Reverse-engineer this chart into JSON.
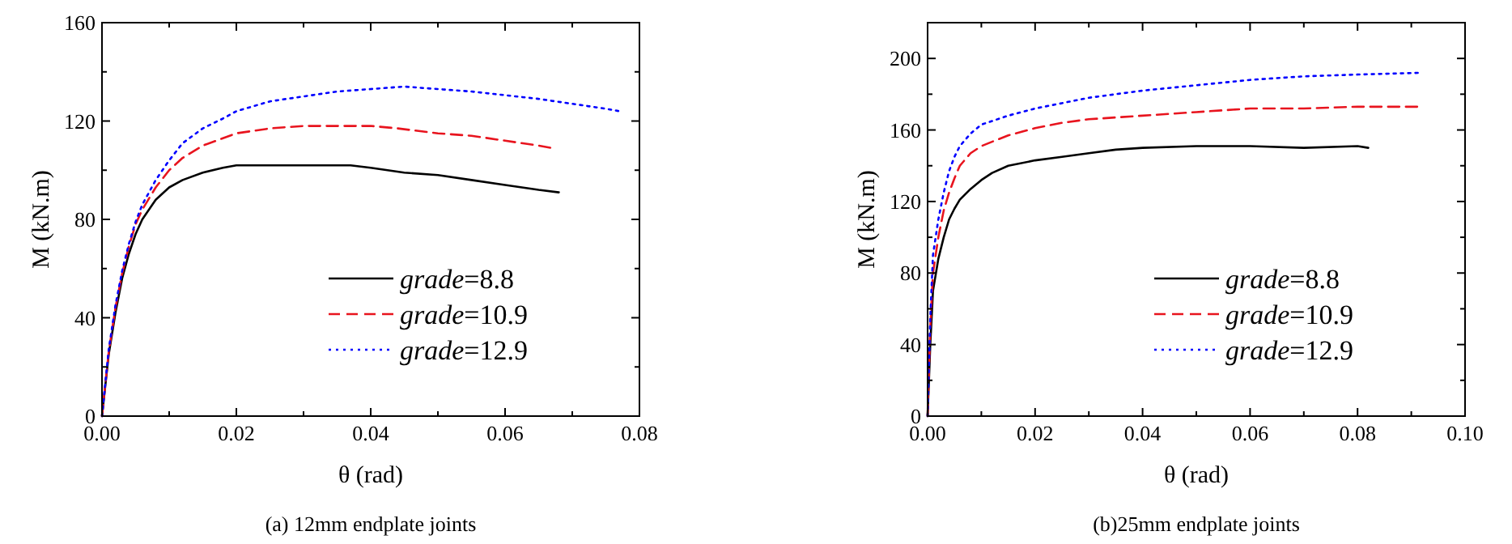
{
  "chart_data": [
    {
      "type": "line",
      "title": "(a) 12mm endplate joints",
      "xlabel": "θ (rad)",
      "ylabel": "M (kN.m)",
      "xlim": [
        0,
        0.08
      ],
      "ylim": [
        0,
        160
      ],
      "xticks": [
        {
          "value": 0,
          "label": "0.00"
        },
        {
          "value": 0.01,
          "label": null
        },
        {
          "value": 0.02,
          "label": "0.02"
        },
        {
          "value": 0.03,
          "label": null
        },
        {
          "value": 0.04,
          "label": "0.04"
        },
        {
          "value": 0.05,
          "label": null
        },
        {
          "value": 0.06,
          "label": "0.06"
        },
        {
          "value": 0.07,
          "label": null
        },
        {
          "value": 0.08,
          "label": "0.08"
        }
      ],
      "yticks": [
        0,
        {
          "value": 20,
          "label": null
        },
        40,
        {
          "value": 60,
          "label": null
        },
        80,
        {
          "value": 100,
          "label": null
        },
        120,
        {
          "value": 140,
          "label": null
        },
        160
      ],
      "legend": "bottom right",
      "grid": false,
      "marker": "none",
      "series": [
        {
          "name": "grade=8.8",
          "color": "#000000",
          "line_style": "solid",
          "x": [
            0,
            0.001,
            0.002,
            0.003,
            0.004,
            0.005,
            0.006,
            0.008,
            0.01,
            0.012,
            0.015,
            0.018,
            0.02,
            0.025,
            0.03,
            0.037,
            0.04,
            0.045,
            0.05,
            0.055,
            0.06,
            0.065,
            0.068
          ],
          "values": [
            0,
            25,
            42,
            56,
            66,
            74,
            80,
            88,
            93,
            96,
            99,
            101,
            102,
            102,
            102,
            102,
            101,
            99,
            98,
            96,
            94,
            92,
            91
          ]
        },
        {
          "name": "grade=10.9",
          "color": "#e8141e",
          "line_style": "dashed",
          "x": [
            0,
            0.001,
            0.002,
            0.003,
            0.004,
            0.005,
            0.006,
            0.008,
            0.01,
            0.012,
            0.015,
            0.018,
            0.02,
            0.025,
            0.03,
            0.035,
            0.04,
            0.044,
            0.05,
            0.055,
            0.06,
            0.065,
            0.067
          ],
          "values": [
            0,
            26,
            44,
            58,
            69,
            78,
            84,
            93,
            100,
            105,
            110,
            113,
            115,
            117,
            118,
            118,
            118,
            117,
            115,
            114,
            112,
            110,
            109
          ]
        },
        {
          "name": "grade=12.9",
          "color": "#0000ff",
          "line_style": "dotted",
          "x": [
            0,
            0.001,
            0.002,
            0.003,
            0.004,
            0.005,
            0.006,
            0.008,
            0.01,
            0.012,
            0.015,
            0.018,
            0.02,
            0.025,
            0.03,
            0.035,
            0.04,
            0.045,
            0.05,
            0.055,
            0.06,
            0.065,
            0.07,
            0.075,
            0.077
          ],
          "values": [
            0,
            27,
            45,
            59,
            70,
            79,
            86,
            96,
            104,
            111,
            117,
            121,
            124,
            128,
            130,
            132,
            133,
            134,
            133,
            132,
            130.5,
            129,
            127,
            125,
            124
          ]
        }
      ]
    },
    {
      "type": "line",
      "title": "(b)25mm endplate joints",
      "xlabel": "θ (rad)",
      "ylabel": "M (kN.m)",
      "xlim": [
        0,
        0.1
      ],
      "ylim": [
        0,
        220
      ],
      "xticks": [
        {
          "value": 0,
          "label": "0.00"
        },
        {
          "value": 0.01,
          "label": null
        },
        {
          "value": 0.02,
          "label": "0.02"
        },
        {
          "value": 0.03,
          "label": null
        },
        {
          "value": 0.04,
          "label": "0.04"
        },
        {
          "value": 0.05,
          "label": null
        },
        {
          "value": 0.06,
          "label": "0.06"
        },
        {
          "value": 0.07,
          "label": null
        },
        {
          "value": 0.08,
          "label": "0.08"
        },
        {
          "value": 0.09,
          "label": null
        },
        {
          "value": 0.1,
          "label": "0.10"
        }
      ],
      "yticks": [
        0,
        {
          "value": 20,
          "label": null
        },
        40,
        {
          "value": 60,
          "label": null
        },
        80,
        {
          "value": 100,
          "label": null
        },
        120,
        {
          "value": 140,
          "label": null
        },
        160,
        {
          "value": 180,
          "label": null
        },
        200,
        {
          "value": 220,
          "label": null
        }
      ],
      "legend": "bottom right",
      "grid": false,
      "marker": "none",
      "series": [
        {
          "name": "grade=8.8",
          "color": "#000000",
          "line_style": "solid",
          "x": [
            0,
            0.0005,
            0.001,
            0.002,
            0.003,
            0.004,
            0.005,
            0.006,
            0.008,
            0.01,
            0.012,
            0.015,
            0.02,
            0.025,
            0.03,
            0.035,
            0.04,
            0.05,
            0.06,
            0.07,
            0.08,
            0.082
          ],
          "values": [
            0,
            40,
            70,
            88,
            100,
            110,
            116,
            121,
            127,
            132,
            136,
            140,
            143,
            145,
            147,
            149,
            150,
            151,
            151,
            150,
            151,
            150
          ]
        },
        {
          "name": "grade=10.9",
          "color": "#e8141e",
          "line_style": "dashed",
          "x": [
            0,
            0.0005,
            0.001,
            0.002,
            0.003,
            0.004,
            0.005,
            0.006,
            0.008,
            0.01,
            0.015,
            0.02,
            0.025,
            0.03,
            0.04,
            0.05,
            0.06,
            0.07,
            0.08,
            0.092
          ],
          "values": [
            0,
            50,
            80,
            100,
            115,
            125,
            133,
            140,
            147,
            151,
            157,
            161,
            164,
            166,
            168,
            170,
            172,
            172,
            173,
            173
          ]
        },
        {
          "name": "grade=12.9",
          "color": "#0000ff",
          "line_style": "dotted",
          "x": [
            0,
            0.0005,
            0.001,
            0.002,
            0.003,
            0.004,
            0.005,
            0.006,
            0.008,
            0.01,
            0.015,
            0.02,
            0.025,
            0.03,
            0.04,
            0.05,
            0.06,
            0.07,
            0.08,
            0.092
          ],
          "values": [
            0,
            55,
            90,
            110,
            125,
            137,
            145,
            151,
            158,
            163,
            168,
            172,
            175,
            178,
            182,
            185,
            188,
            190,
            191,
            192
          ]
        }
      ]
    }
  ]
}
